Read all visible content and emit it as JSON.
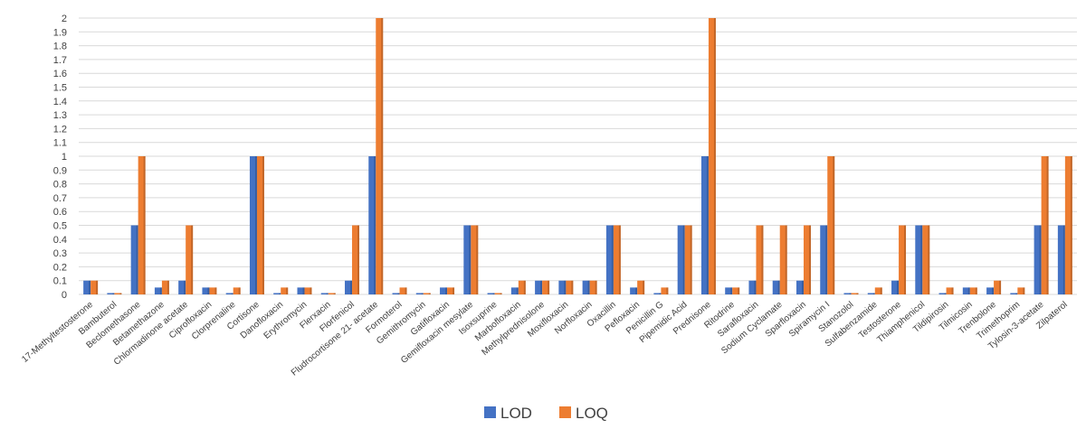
{
  "chart_data": {
    "type": "bar",
    "categories": [
      "17-Methyltestosterone",
      "Bambuterol",
      "Beclomethasone",
      "Betamethazone",
      "Chlormadinone acetate",
      "Ciprofloxacin",
      "Clorprenaline",
      "Cortisone",
      "Danofloxacin",
      "Erythromycin",
      "Flerxacin",
      "Florfenicol",
      "Fludrocortisone 21- acetate",
      "Formoterol",
      "Gemithromycin",
      "Gatifloxacin",
      "Gemifloxacin mesylate",
      "Isoxsuprine",
      "Marbofloxacin",
      "Methylprednisolone",
      "Moxifloxacin",
      "Norfloxacin",
      "Oxacillin",
      "Pefloxacin",
      "Penicillin G",
      "Pipemidic Acid",
      "Prednisone",
      "Ritodrine",
      "Sarafloxacin",
      "Sodium Cyclamate",
      "Sparfloxacin",
      "Spiramycin I",
      "Stanozolol",
      "Sulfabenzamide",
      "Testosterone",
      "Thiamphenicol",
      "Tildipirosin",
      "Tilmicosin",
      "Trenbolone",
      "Trimethoprim",
      "Tylosin-3-acetate",
      "Zilpaterol"
    ],
    "series": [
      {
        "name": "LOD",
        "color": "#4472C4",
        "values": [
          0.1,
          0.01,
          0.5,
          0.05,
          0.1,
          0.05,
          0.01,
          1,
          0.01,
          0.05,
          0.01,
          0.1,
          1,
          0.01,
          0.01,
          0.05,
          0.5,
          0.01,
          0.05,
          0.1,
          0.1,
          0.1,
          0.5,
          0.05,
          0.01,
          0.5,
          1,
          0.05,
          0.1,
          0.1,
          0.1,
          0.5,
          0.01,
          0.01,
          0.1,
          0.5,
          0.01,
          0.05,
          0.05,
          0.01,
          0.5,
          0.5
        ]
      },
      {
        "name": "LOQ",
        "color": "#ED7D31",
        "values": [
          0.1,
          0.01,
          1,
          0.1,
          0.5,
          0.05,
          0.05,
          1,
          0.05,
          0.05,
          0.01,
          0.5,
          2,
          0.05,
          0.01,
          0.05,
          0.5,
          0.01,
          0.1,
          0.1,
          0.1,
          0.1,
          0.5,
          0.1,
          0.05,
          0.5,
          2,
          0.05,
          0.5,
          0.5,
          0.5,
          1,
          0.01,
          0.05,
          0.5,
          0.5,
          0.05,
          0.05,
          0.1,
          0.05,
          1,
          1
        ]
      }
    ],
    "yticks": [
      "0",
      "0.1",
      "0.2",
      "0.3",
      "0.4",
      "0.5",
      "0.6",
      "0.7",
      "0.8",
      "0.9",
      "1",
      "1.1",
      "1.2",
      "1.3",
      "1.4",
      "1.5",
      "1.6",
      "1.7",
      "1.8",
      "1.9",
      "2"
    ],
    "ylim": [
      0,
      2
    ],
    "grid": true,
    "legend": "bottom",
    "title": "",
    "xlabel": "",
    "ylabel": ""
  }
}
